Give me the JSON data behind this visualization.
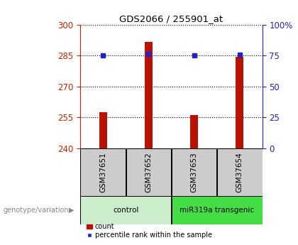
{
  "title": "GDS2066 / 255901_at",
  "samples": [
    "GSM37651",
    "GSM37652",
    "GSM37653",
    "GSM37654"
  ],
  "bar_values": [
    257.5,
    291.5,
    256.2,
    284.5
  ],
  "percentile_values": [
    75.0,
    76.0,
    75.0,
    75.5
  ],
  "ylim_left": [
    240,
    300
  ],
  "ylim_right": [
    0,
    100
  ],
  "yticks_left": [
    240,
    255,
    270,
    285,
    300
  ],
  "yticks_right": [
    0,
    25,
    50,
    75,
    100
  ],
  "ytick_labels_right": [
    "0",
    "25",
    "50",
    "75",
    "100%"
  ],
  "bar_color": "#bb1100",
  "marker_color": "#2222cc",
  "bar_width": 0.18,
  "groups": [
    {
      "label": "control",
      "samples": [
        0,
        1
      ],
      "color": "#cceecc"
    },
    {
      "label": "miR319a transgenic",
      "samples": [
        2,
        3
      ],
      "color": "#44dd44"
    }
  ],
  "group_label_prefix": "genotype/variation",
  "legend_bar_label": "count",
  "legend_marker_label": "percentile rank within the sample",
  "background_color": "#ffffff",
  "plot_bg_color": "#ffffff",
  "label_box_color": "#cccccc",
  "left_axis_color": "#cc2200",
  "right_axis_color": "#2222bb"
}
